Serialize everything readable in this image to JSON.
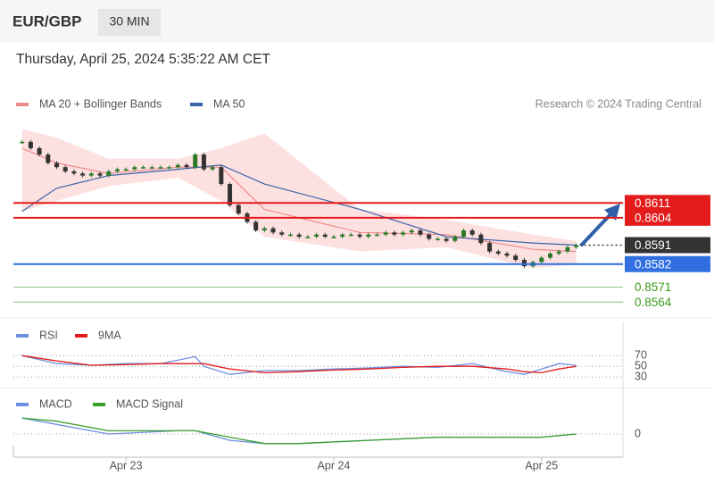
{
  "header": {
    "symbol": "EUR/GBP",
    "interval": "30 MIN"
  },
  "timestamp": "Thursday, April 25, 2024 5:35:22 AM CET",
  "credit": "Research © 2024 Trading Central",
  "chart_data": [
    {
      "type": "candlestick",
      "xlim": [
        -1,
        69.4
      ],
      "xticks": [
        {
          "value": 12,
          "label": "Apr 23"
        },
        {
          "value": 36,
          "label": "Apr 24"
        },
        {
          "value": 60,
          "label": "Apr 25"
        }
      ],
      "ylim": [
        0.8559,
        0.8648
      ],
      "candles": {
        "up_color": "#2a7a2a",
        "down_color": "#333333",
        "values": [
          0.864,
          0.8637,
          0.8634,
          0.863,
          0.8628,
          0.8626,
          0.8625,
          0.8624,
          0.8625,
          0.8624,
          0.8626,
          0.8627,
          0.8627,
          0.8628,
          0.8628,
          0.8628,
          0.8628,
          0.8628,
          0.8629,
          0.8628,
          0.8634,
          0.8627,
          0.8628,
          0.862,
          0.861,
          0.8606,
          0.8602,
          0.8598,
          0.8599,
          0.8597,
          0.8596,
          0.8596,
          0.8595,
          0.8595,
          0.8596,
          0.8595,
          0.8595,
          0.8596,
          0.8596,
          0.8595,
          0.8596,
          0.8596,
          0.8597,
          0.8596,
          0.8597,
          0.8598,
          0.8596,
          0.8594,
          0.8594,
          0.8593,
          0.8595,
          0.8598,
          0.8596,
          0.8592,
          0.8588,
          0.8587,
          0.8586,
          0.8584,
          0.8581,
          0.8583,
          0.8585,
          0.8587,
          0.8588,
          0.859,
          0.8591
        ]
      },
      "series": [
        {
          "name": "MA 20 + Bollinger Bands",
          "color": "#f08a8a",
          "band_color": "#fde0e0",
          "x": [
            0,
            4,
            10,
            18,
            23,
            28,
            39,
            49,
            59,
            64
          ],
          "values": [
            0.8637,
            0.863,
            0.8625,
            0.8628,
            0.8628,
            0.8608,
            0.8597,
            0.8596,
            0.8589,
            0.8588
          ],
          "upper": [
            0.8646,
            0.8642,
            0.8632,
            0.8632,
            0.8637,
            0.8644,
            0.8608,
            0.8603,
            0.8596,
            0.8593
          ],
          "lower": [
            0.8607,
            0.8612,
            0.8619,
            0.8623,
            0.8612,
            0.8595,
            0.8588,
            0.859,
            0.858,
            0.8582
          ]
        },
        {
          "name": "MA 50",
          "color": "#3a64a8",
          "x": [
            0,
            4,
            10,
            18,
            23,
            28,
            39,
            49,
            59,
            64
          ],
          "values": [
            0.8607,
            0.8618,
            0.8624,
            0.8627,
            0.8629,
            0.862,
            0.8608,
            0.8595,
            0.8592,
            0.8591
          ]
        }
      ],
      "levels": [
        {
          "value": 0.8611,
          "color": "#e31b1b",
          "style": "solid",
          "label_style": "box"
        },
        {
          "value": 0.8604,
          "color": "#e31b1b",
          "style": "solid",
          "label_style": "box"
        },
        {
          "value": 0.8591,
          "color": "#333333",
          "style": "dotted",
          "label_style": "box"
        },
        {
          "value": 0.8582,
          "color": "#2f6fe0",
          "style": "solid",
          "label_style": "box"
        },
        {
          "value": 0.8571,
          "color": "#3a9a1a",
          "style": "solid",
          "label_style": "text"
        },
        {
          "value": 0.8564,
          "color": "#3a9a1a",
          "style": "solid",
          "label_style": "text"
        }
      ]
    },
    {
      "type": "line",
      "ylim": [
        17,
        92
      ],
      "yticks": [
        70,
        50,
        30
      ],
      "series": [
        {
          "name": "RSI",
          "color": "#6d8fe0",
          "x": [
            0,
            4,
            8,
            12,
            16,
            20,
            21,
            24,
            28,
            32,
            36,
            40,
            44,
            48,
            52,
            56,
            58,
            60,
            62,
            64
          ],
          "values": [
            70,
            55,
            52,
            55,
            55,
            68,
            50,
            35,
            42,
            42,
            45,
            47,
            50,
            48,
            55,
            40,
            35,
            45,
            55,
            52
          ]
        },
        {
          "name": "9MA",
          "color": "#e31b1b",
          "x": [
            0,
            4,
            8,
            12,
            16,
            20,
            21,
            24,
            28,
            32,
            36,
            40,
            44,
            48,
            52,
            56,
            58,
            60,
            62,
            64
          ],
          "values": [
            70,
            60,
            52,
            53,
            55,
            55,
            55,
            45,
            38,
            40,
            43,
            45,
            48,
            50,
            50,
            45,
            40,
            38,
            45,
            50
          ]
        }
      ]
    },
    {
      "type": "line",
      "ylim": [
        -0.0007,
        0.0007
      ],
      "yticks": [
        0
      ],
      "series": [
        {
          "name": "MACD",
          "color": "#6d8fe0",
          "x": [
            0,
            4,
            10,
            18,
            20,
            24,
            28,
            32,
            40,
            48,
            56,
            60,
            64
          ],
          "values": [
            0.0005,
            0.0003,
            0.0,
            0.0001,
            0.0001,
            -0.0002,
            -0.0003,
            -0.0003,
            -0.0002,
            -0.0001,
            -0.0001,
            -0.0001,
            0.0
          ]
        },
        {
          "name": "MACD Signal",
          "color": "#3aa02a",
          "x": [
            0,
            4,
            10,
            18,
            20,
            24,
            28,
            32,
            40,
            48,
            56,
            60,
            64
          ],
          "values": [
            0.0005,
            0.0004,
            0.0001,
            0.0001,
            0.0001,
            -0.0001,
            -0.0003,
            -0.0003,
            -0.0002,
            -0.0001,
            -0.0001,
            -0.0001,
            0.0
          ]
        }
      ]
    }
  ]
}
